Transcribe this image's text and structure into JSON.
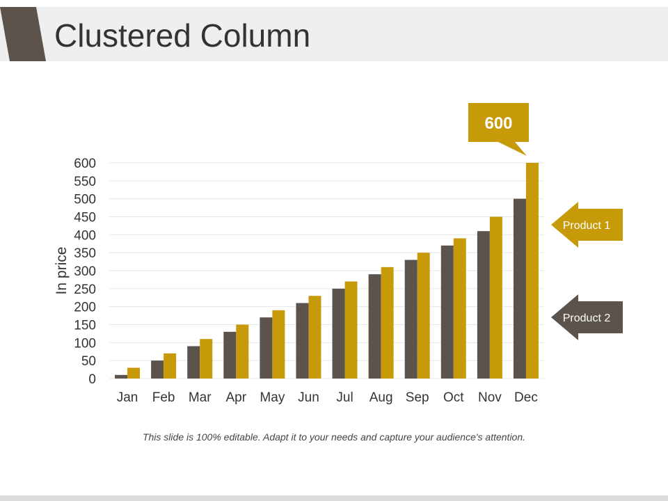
{
  "title": "Clustered Column",
  "footer_note": "This slide is 100% editable. Adapt it to your needs and capture your audience's attention.",
  "colors": {
    "accent_dark": "#5b534c",
    "accent_gold": "#c79a0a",
    "title_bg": "#efefef",
    "grid": "#e6e6e6"
  },
  "chart_data": {
    "type": "bar",
    "title": "",
    "xlabel": "",
    "ylabel": "In price",
    "ylim": [
      0,
      600
    ],
    "yticks": [
      0,
      50,
      100,
      150,
      200,
      250,
      300,
      350,
      400,
      450,
      500,
      550,
      600
    ],
    "grid": true,
    "categories": [
      "Jan",
      "Feb",
      "Mar",
      "Apr",
      "May",
      "Jun",
      "Jul",
      "Aug",
      "Sep",
      "Oct",
      "Nov",
      "Dec"
    ],
    "series": [
      {
        "name": "Product 2",
        "color": "#5b534c",
        "values": [
          10,
          50,
          90,
          130,
          170,
          210,
          250,
          290,
          330,
          370,
          410,
          500
        ]
      },
      {
        "name": "Product 1",
        "color": "#c79a0a",
        "values": [
          30,
          70,
          110,
          150,
          190,
          230,
          270,
          310,
          350,
          390,
          450,
          600
        ]
      }
    ],
    "annotation": {
      "text": "600",
      "category": "Dec",
      "series": "Product 1"
    },
    "legend": [
      {
        "label": "Product 1",
        "color": "#c79a0a"
      },
      {
        "label": "Product 2",
        "color": "#5b534c"
      }
    ]
  }
}
